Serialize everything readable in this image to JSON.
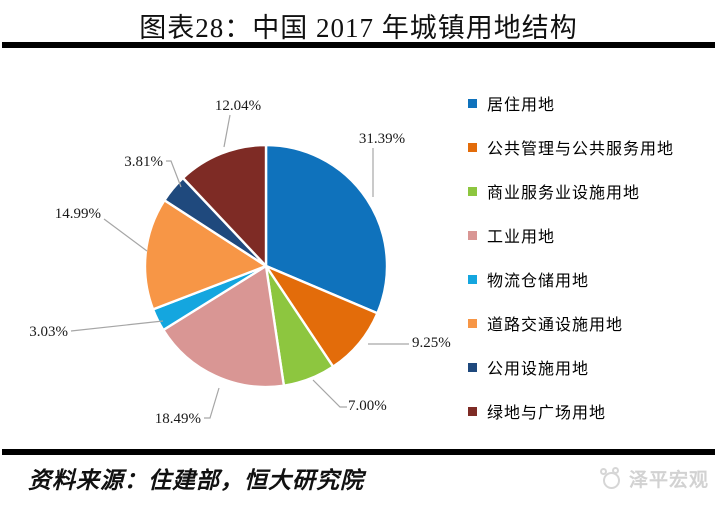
{
  "header": {
    "title": "图表28：中国 2017 年城镇用地结构"
  },
  "footer": {
    "source": "资料来源：住建部，恒大研究院",
    "logo_text": "泽平宏观"
  },
  "chart_data": {
    "type": "pie",
    "title": "中国 2017 年城镇用地结构",
    "categories": [
      "居住用地",
      "公共管理与公共服务用地",
      "商业服务业设施用地",
      "工业用地",
      "物流仓储用地",
      "道路交通设施用地",
      "公用设施用地",
      "绿地与广场用地"
    ],
    "values": [
      31.39,
      9.25,
      7.0,
      18.49,
      3.03,
      14.99,
      3.81,
      12.04
    ],
    "colors": [
      "#0F72BC",
      "#E36C0A",
      "#8DC63F",
      "#D99694",
      "#14A6DF",
      "#F79646",
      "#1F497D",
      "#7E2B25"
    ],
    "data_labels": [
      "31.39%",
      "9.25%",
      "7.00%",
      "18.49%",
      "3.03%",
      "14.99%",
      "3.81%",
      "12.04%"
    ],
    "unit": "%",
    "start_angle_deg": 0,
    "direction": "clockwise",
    "legend_position": "right",
    "slice_border_color": "#FFFFFF",
    "leader_line_color": "#A6A6A6"
  }
}
